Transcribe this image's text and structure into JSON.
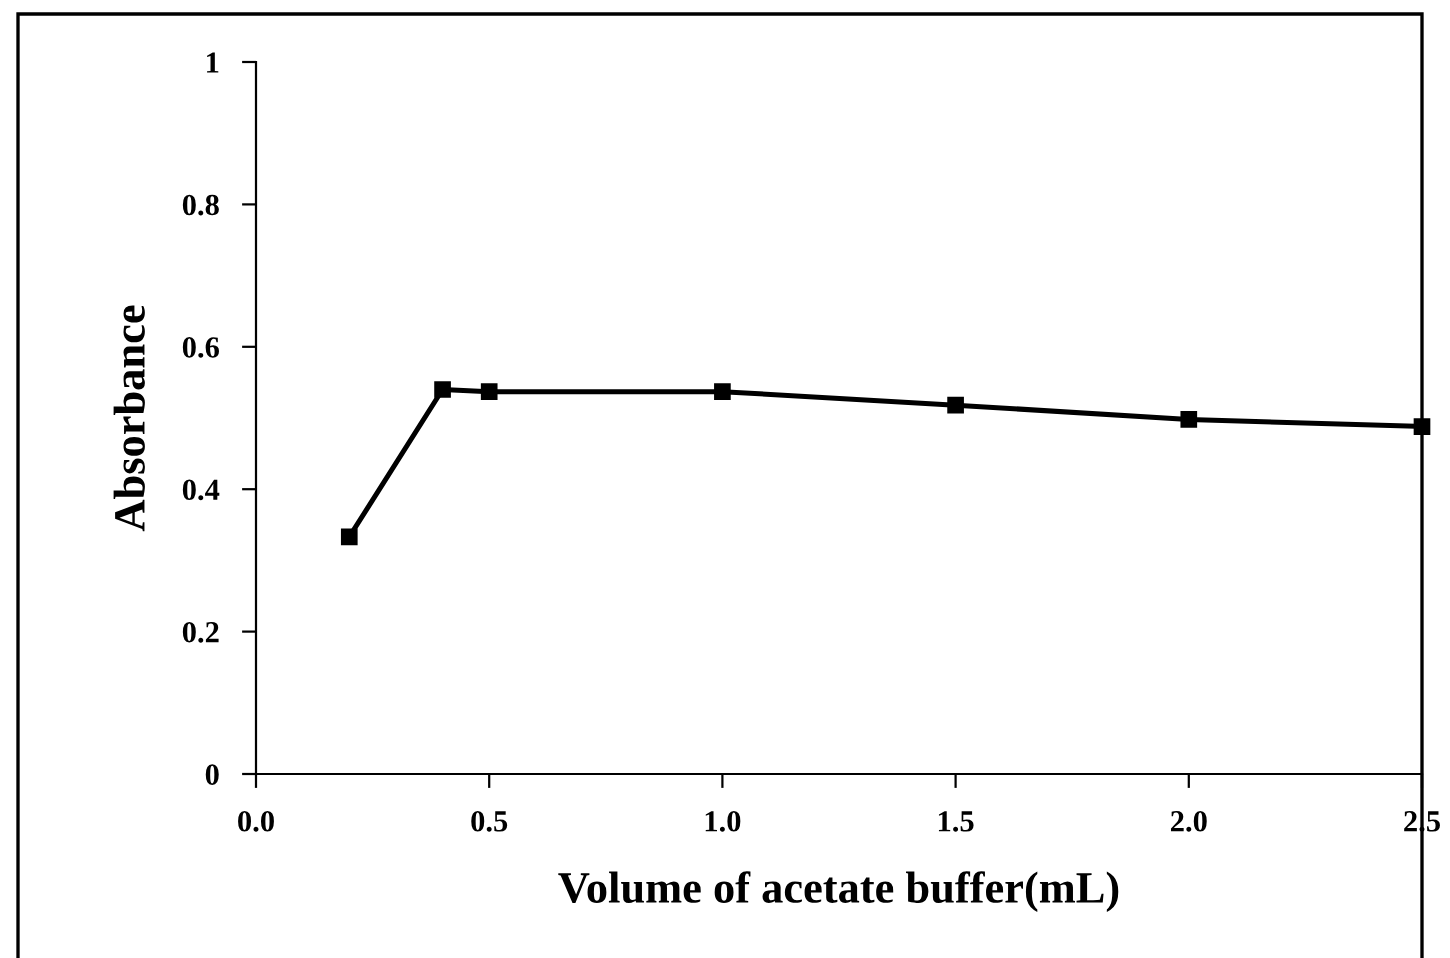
{
  "chart_data": {
    "type": "line",
    "xlabel": "Volume of acetate buffer(mL)",
    "ylabel": "Absorbance",
    "x": [
      0.2,
      0.4,
      0.5,
      1.0,
      1.5,
      2.0,
      2.5
    ],
    "series": [
      {
        "color": "#000000",
        "values": [
          0.333,
          0.54,
          0.537,
          0.537,
          0.518,
          0.498,
          0.488
        ]
      }
    ],
    "xlim": [
      0,
      2.5
    ],
    "xticks": [
      {
        "value": 0,
        "label": "0.0"
      },
      0.5,
      {
        "value": 1,
        "label": "1.0"
      },
      1.5,
      {
        "value": 2,
        "label": "2.0"
      },
      2.5
    ],
    "ylim": [
      0,
      1
    ],
    "yticks": [
      0,
      0.2,
      0.4,
      0.6,
      0.8,
      1
    ],
    "marker": "square",
    "line_style": "solid",
    "grid": false,
    "legend": false
  }
}
